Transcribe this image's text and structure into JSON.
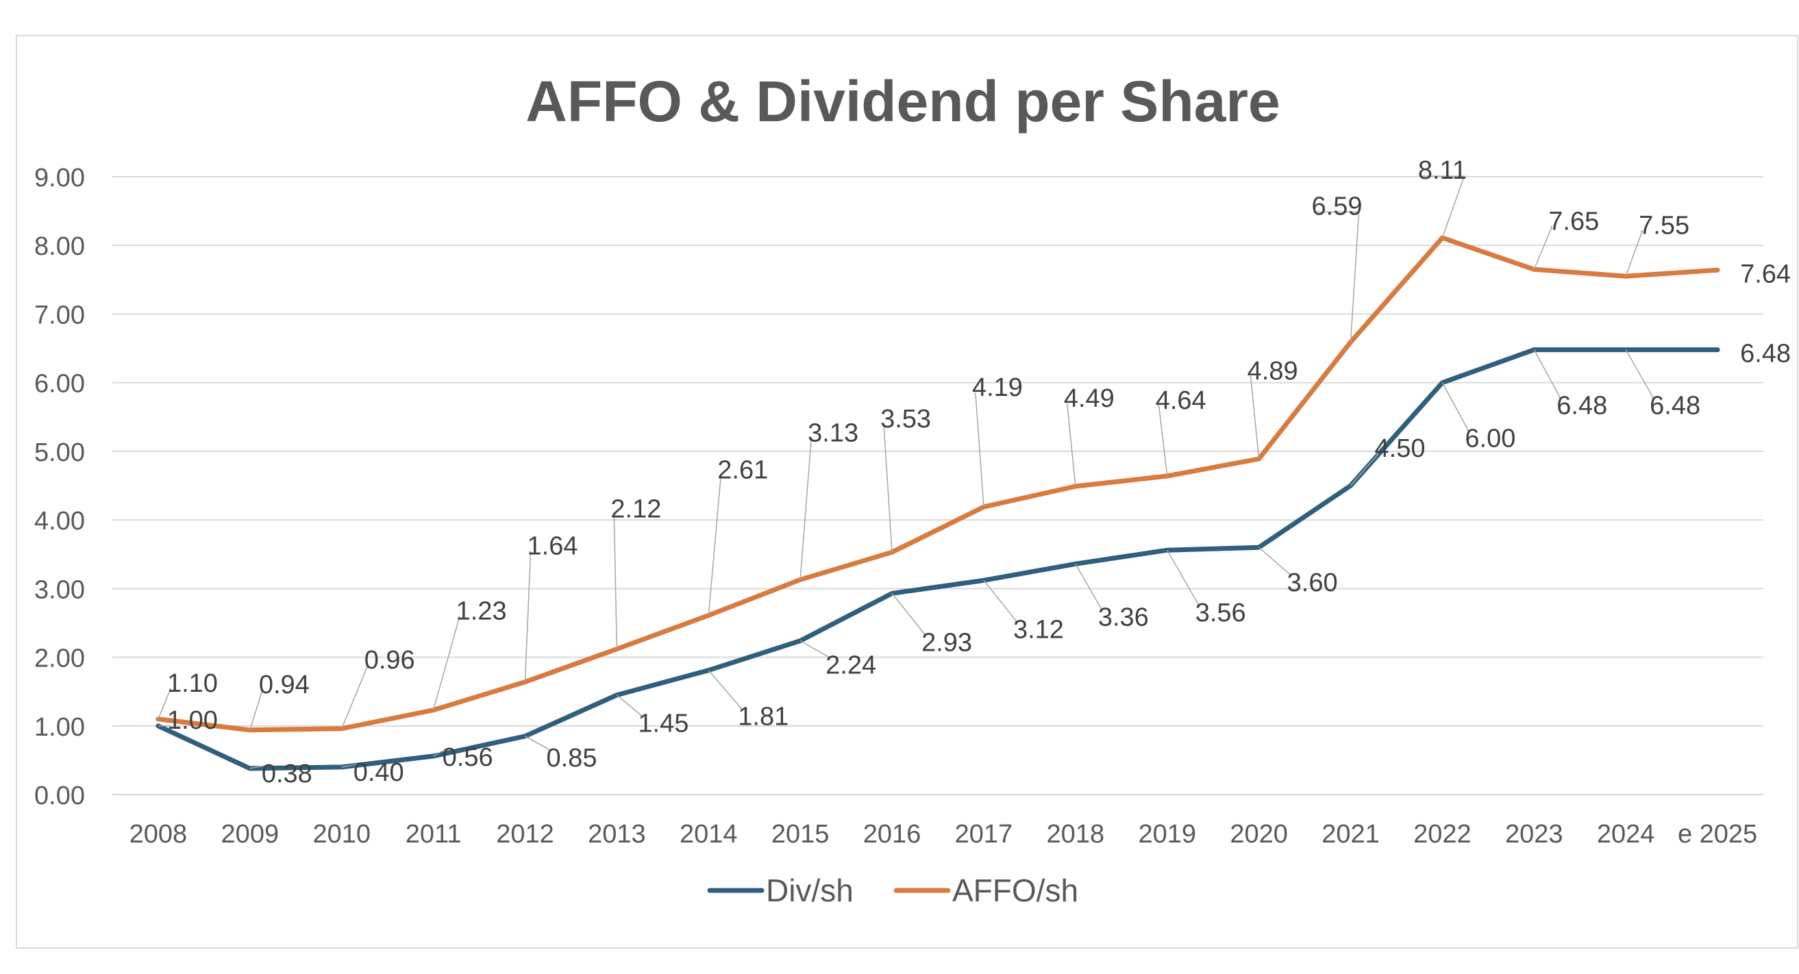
{
  "chart_data": {
    "type": "line",
    "title": "AFFO & Dividend per Share",
    "xlabel": "",
    "ylabel": "",
    "categories": [
      "2008",
      "2009",
      "2010",
      "2011",
      "2012",
      "2013",
      "2014",
      "2015",
      "2016",
      "2017",
      "2018",
      "2019",
      "2020",
      "2021",
      "2022",
      "2023",
      "2024",
      "e 2025"
    ],
    "ylim": [
      0,
      9
    ],
    "yticks": [
      "0.00",
      "1.00",
      "2.00",
      "3.00",
      "4.00",
      "5.00",
      "6.00",
      "7.00",
      "8.00",
      "9.00"
    ],
    "grid": true,
    "legend_position": "bottom",
    "series": [
      {
        "name": "Div/sh",
        "color": "#2e5f7f",
        "values": [
          1.0,
          0.38,
          0.4,
          0.56,
          0.85,
          1.45,
          1.81,
          2.24,
          2.93,
          3.12,
          3.36,
          3.56,
          3.6,
          4.5,
          6.0,
          6.48,
          6.48,
          6.48
        ],
        "labels": [
          "1.00",
          "0.38",
          "0.40",
          "0.56",
          "0.85",
          "1.45",
          "1.81",
          "2.24",
          "2.93",
          "3.12",
          "3.36",
          "3.56",
          "3.60",
          "4.50",
          "6.00",
          "6.48",
          "6.48",
          "6.48"
        ]
      },
      {
        "name": "AFFO/sh",
        "color": "#d97a3f",
        "values": [
          1.1,
          0.94,
          0.96,
          1.23,
          1.64,
          2.12,
          2.61,
          3.13,
          3.53,
          4.19,
          4.49,
          4.64,
          4.89,
          6.59,
          8.11,
          7.65,
          7.55,
          7.64
        ],
        "labels": [
          "1.10",
          "0.94",
          "0.96",
          "1.23",
          "1.64",
          "2.12",
          "2.61",
          "3.13",
          "3.53",
          "4.19",
          "4.49",
          "4.64",
          "4.89",
          "6.59",
          "8.11",
          "7.65",
          "7.55",
          "7.64"
        ]
      }
    ]
  }
}
